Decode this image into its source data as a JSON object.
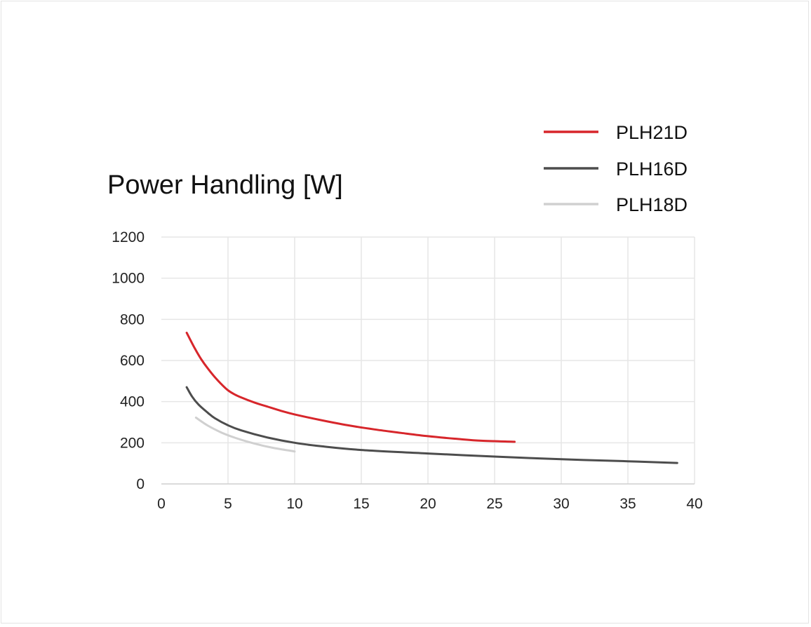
{
  "chart_data": {
    "type": "line",
    "title": "Power Handling [W]",
    "xlabel": "",
    "ylabel": "",
    "xlim": [
      0,
      40
    ],
    "ylim": [
      0,
      1200
    ],
    "x_ticks": [
      0,
      5,
      10,
      15,
      20,
      25,
      30,
      35,
      40
    ],
    "y_ticks": [
      0,
      200,
      400,
      600,
      800,
      1000,
      1200
    ],
    "x_tick_labels": [
      "0",
      "5",
      "10",
      "15",
      "20",
      "25",
      "30",
      "35",
      "40"
    ],
    "y_tick_labels": [
      "0",
      "200",
      "400",
      "600",
      "800",
      "1000",
      "1200"
    ],
    "grid": true,
    "legend_position": "top-right",
    "series": [
      {
        "name": "PLH21D",
        "color": "#d7262b",
        "x": [
          1.9,
          2.5,
          3.0,
          3.5,
          4.0,
          4.5,
          5.0,
          5.5,
          6.0,
          7.0,
          8.0,
          9.0,
          10.0,
          12.0,
          14.0,
          16.0,
          18.0,
          20.0,
          22.0,
          24.0,
          26.5
        ],
        "y": [
          735,
          660,
          605,
          560,
          520,
          485,
          455,
          435,
          420,
          395,
          375,
          355,
          338,
          310,
          285,
          265,
          248,
          232,
          220,
          210,
          205
        ]
      },
      {
        "name": "PLH16D",
        "color": "#4d4d4d",
        "x": [
          1.9,
          2.3,
          2.8,
          3.5,
          4.0,
          5.0,
          6.0,
          8.0,
          10.0,
          12.0,
          15.0,
          20.0,
          25.0,
          30.0,
          35.0,
          38.7
        ],
        "y": [
          470,
          425,
          385,
          345,
          320,
          285,
          260,
          225,
          200,
          183,
          165,
          148,
          133,
          120,
          110,
          102
        ]
      },
      {
        "name": "PLH18D",
        "color": "#d0d0d0",
        "x": [
          2.6,
          3.5,
          4.5,
          5.5,
          6.5,
          7.5,
          8.5,
          10.0
        ],
        "y": [
          322,
          283,
          250,
          225,
          205,
          188,
          174,
          158
        ]
      }
    ]
  }
}
